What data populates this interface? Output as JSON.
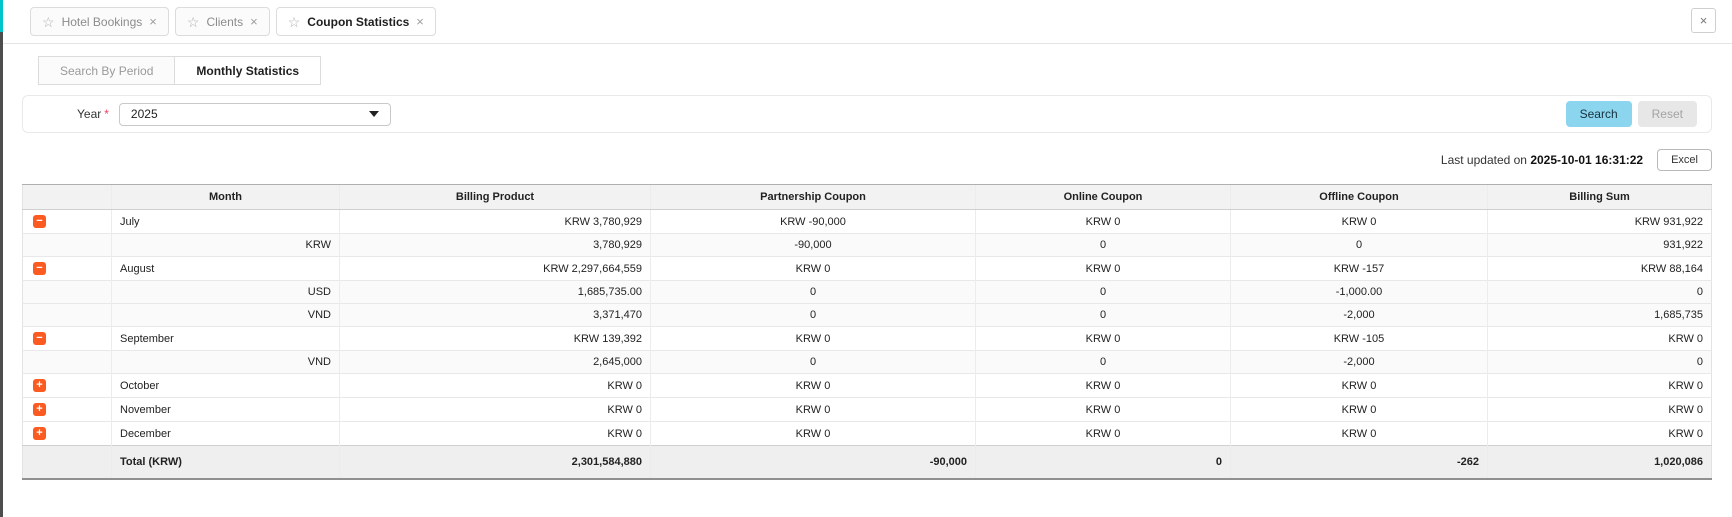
{
  "icons": {
    "star": "☆",
    "close": "×",
    "minus": "−",
    "plus": "+"
  },
  "colors": {
    "accent_orange": "#fb5b21",
    "search_button_bg": "#8bd5ee",
    "sidebar_teal": "#00c4cc",
    "sidebar_gray": "#4d4d4d"
  },
  "tabs": [
    {
      "label": "Hotel Bookings",
      "active": false
    },
    {
      "label": "Clients",
      "active": false
    },
    {
      "label": "Coupon Statistics",
      "active": true
    }
  ],
  "subtabs": [
    {
      "label": "Search By Period",
      "active": false
    },
    {
      "label": "Monthly Statistics",
      "active": true
    }
  ],
  "filter": {
    "year_label": "Year",
    "required_mark": "*",
    "year_value": "2025",
    "search_label": "Search",
    "reset_label": "Reset"
  },
  "status": {
    "last_updated_prefix": "Last updated on",
    "last_updated_time": "2025-10-01 16:31:22",
    "excel_label": "Excel"
  },
  "table": {
    "columns": [
      "",
      "Month",
      "Billing Product",
      "Partnership Coupon",
      "Online Coupon",
      "Offline Coupon",
      "Billing Sum"
    ],
    "rows": [
      {
        "kind": "month",
        "icon": "minus",
        "label": "July",
        "billing_product": "KRW 3,780,929",
        "partnership_coupon": "KRW -90,000",
        "online_coupon": "KRW 0",
        "offline_coupon": "KRW 0",
        "billing_sum": "KRW 931,922"
      },
      {
        "kind": "currency",
        "icon": null,
        "label": "KRW",
        "billing_product": "3,780,929",
        "partnership_coupon": "-90,000",
        "online_coupon": "0",
        "offline_coupon": "0",
        "billing_sum": "931,922"
      },
      {
        "kind": "month",
        "icon": "minus",
        "label": "August",
        "billing_product": "KRW 2,297,664,559",
        "partnership_coupon": "KRW 0",
        "online_coupon": "KRW 0",
        "offline_coupon": "KRW -157",
        "billing_sum": "KRW 88,164"
      },
      {
        "kind": "currency",
        "icon": null,
        "label": "USD",
        "billing_product": "1,685,735.00",
        "partnership_coupon": "0",
        "online_coupon": "0",
        "offline_coupon": "-1,000.00",
        "billing_sum": "0"
      },
      {
        "kind": "currency",
        "icon": null,
        "label": "VND",
        "billing_product": "3,371,470",
        "partnership_coupon": "0",
        "online_coupon": "0",
        "offline_coupon": "-2,000",
        "billing_sum": "1,685,735"
      },
      {
        "kind": "month",
        "icon": "minus",
        "label": "September",
        "billing_product": "KRW 139,392",
        "partnership_coupon": "KRW 0",
        "online_coupon": "KRW 0",
        "offline_coupon": "KRW -105",
        "billing_sum": "KRW 0"
      },
      {
        "kind": "currency",
        "icon": null,
        "label": "VND",
        "billing_product": "2,645,000",
        "partnership_coupon": "0",
        "online_coupon": "0",
        "offline_coupon": "-2,000",
        "billing_sum": "0"
      },
      {
        "kind": "month",
        "icon": "plus",
        "label": "October",
        "billing_product": "KRW 0",
        "partnership_coupon": "KRW 0",
        "online_coupon": "KRW 0",
        "offline_coupon": "KRW 0",
        "billing_sum": "KRW 0"
      },
      {
        "kind": "month",
        "icon": "plus",
        "label": "November",
        "billing_product": "KRW 0",
        "partnership_coupon": "KRW 0",
        "online_coupon": "KRW 0",
        "offline_coupon": "KRW 0",
        "billing_sum": "KRW 0"
      },
      {
        "kind": "month",
        "icon": "plus",
        "label": "December",
        "billing_product": "KRW 0",
        "partnership_coupon": "KRW 0",
        "online_coupon": "KRW 0",
        "offline_coupon": "KRW 0",
        "billing_sum": "KRW 0"
      }
    ],
    "total_row": {
      "label": "Total (KRW)",
      "billing_product": "2,301,584,880",
      "partnership_coupon": "-90,000",
      "online_coupon": "0",
      "offline_coupon": "-262",
      "billing_sum": "1,020,086"
    }
  }
}
